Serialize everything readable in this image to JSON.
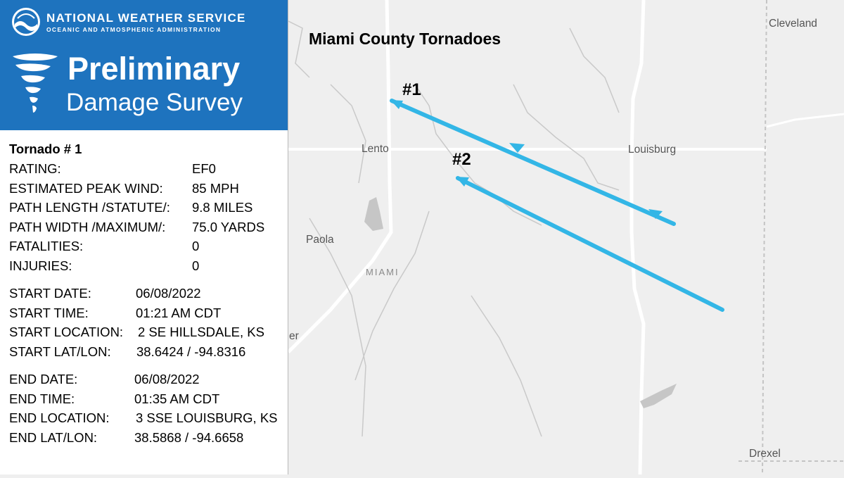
{
  "banner": {
    "agency": "NATIONAL WEATHER SERVICE",
    "subagency": "OCEANIC AND ATMOSPHERIC ADMINISTRATION",
    "title_line1": "Preliminary",
    "title_line2": "Damage Survey",
    "color": "#1e73be"
  },
  "tornado": {
    "title": "Tornado # 1",
    "stats": [
      {
        "label": "RATING:",
        "value": "EF0"
      },
      {
        "label": "ESTIMATED PEAK WIND:",
        "value": "85 MPH"
      },
      {
        "label": "PATH LENGTH /STATUTE/:",
        "value": "9.8 MILES"
      },
      {
        "label": "PATH WIDTH /MAXIMUM/:",
        "value": "75.0 YARDS"
      },
      {
        "label": "FATALITIES:",
        "value": "0"
      },
      {
        "label": "INJURIES:",
        "value": "0"
      }
    ],
    "start": [
      {
        "label": "START DATE:",
        "value": "06/08/2022"
      },
      {
        "label": "START TIME:",
        "value": "01:21 AM CDT"
      },
      {
        "label": "START LOCATION:",
        "value": "2 SE HILLSDALE, KS"
      },
      {
        "label": "START LAT/LON:",
        "value": "38.6424 / -94.8316"
      }
    ],
    "end": [
      {
        "label": "END DATE:",
        "value": "06/08/2022"
      },
      {
        "label": "END TIME:",
        "value": "01:35 AM CDT"
      },
      {
        "label": "END LOCATION:",
        "value": "3 SSE LOUISBURG, KS"
      },
      {
        "label": "END LAT/LON:",
        "value": "38.5868 / -94.6658"
      }
    ]
  },
  "map": {
    "title": "Miami County Tornadoes",
    "places": [
      "Cleveland",
      "Lento",
      "Louisburg",
      "Paola",
      "MIAMI",
      "Drexel",
      "er"
    ],
    "track_labels": [
      "#1",
      "#2"
    ],
    "track_color": "#33b6e6"
  }
}
